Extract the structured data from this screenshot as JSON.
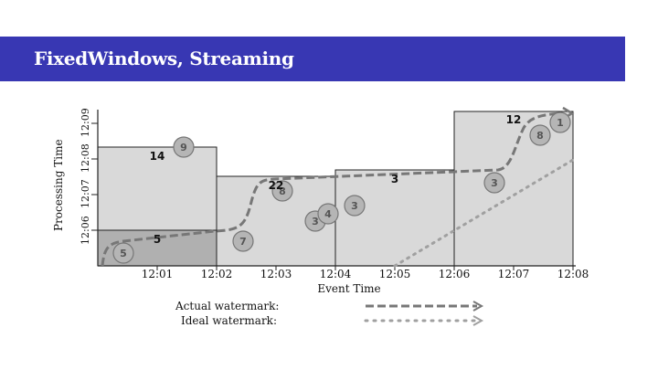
{
  "header": {
    "title": "FixedWindows, Streaming"
  },
  "diagram": {
    "x_axis_label": "Event Time",
    "y_axis_label": "Processing Time",
    "x_ticks": [
      "12:01",
      "12:02",
      "12:03",
      "12:04",
      "12:05",
      "12:06",
      "12:07",
      "12:08"
    ],
    "y_ticks": [
      "12:06",
      "12:07",
      "12:08",
      "12:09"
    ],
    "window_results": [
      "5",
      "14",
      "22",
      "3",
      "12"
    ],
    "data_points": [
      "5",
      "9",
      "7",
      "8",
      "3",
      "4",
      "3",
      "3",
      "8",
      "1"
    ],
    "legend": [
      {
        "label": "Actual watermark:",
        "style": "dashed"
      },
      {
        "label": "Ideal watermark:",
        "style": "dotted"
      }
    ]
  },
  "colors": {
    "title_bar": "#3837b3",
    "pane_light": "#d9d9d9",
    "pane_dark": "#b0b0b0",
    "watermark_actual": "#777777",
    "watermark_ideal": "#a0a0a0"
  }
}
